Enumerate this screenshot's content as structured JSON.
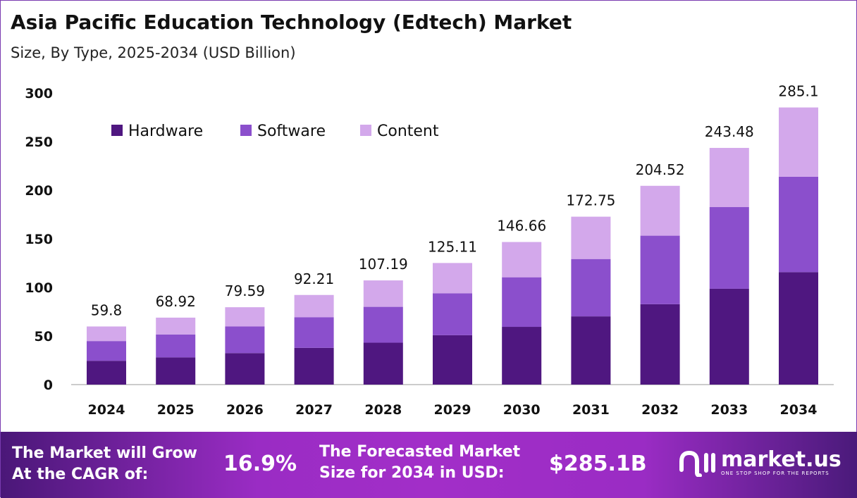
{
  "title": "Asia Pacific Education Technology (Edtech) Market",
  "subtitle": "Size, By Type, 2025-2034 (USD Billion)",
  "chart_data": {
    "type": "bar",
    "stacked": true,
    "categories": [
      "2024",
      "2025",
      "2026",
      "2027",
      "2028",
      "2029",
      "2030",
      "2031",
      "2032",
      "2033",
      "2034"
    ],
    "series": [
      {
        "name": "Hardware",
        "color": "#4f1780",
        "values": [
          24.5,
          28.0,
          32.4,
          37.8,
          43.1,
          50.8,
          59.4,
          70.2,
          82.7,
          98.6,
          115.7
        ]
      },
      {
        "name": "Software",
        "color": "#8b4fcc",
        "values": [
          20.3,
          23.6,
          27.4,
          31.4,
          36.9,
          43.1,
          51.0,
          59.0,
          70.5,
          84.0,
          98.1
        ]
      },
      {
        "name": "Content",
        "color": "#d3a8eb",
        "values": [
          15.0,
          17.3,
          19.8,
          23.0,
          27.2,
          31.2,
          36.3,
          43.55,
          51.3,
          60.9,
          71.3
        ]
      }
    ],
    "totals": [
      "59.8",
      "68.92",
      "79.59",
      "92.21",
      "107.19",
      "125.11",
      "146.66",
      "172.75",
      "204.52",
      "243.48",
      "285.1"
    ],
    "yticks": [
      "0",
      "50",
      "100",
      "150",
      "200",
      "250",
      "300"
    ],
    "ylim": [
      0,
      300
    ],
    "grid": false,
    "legend": "top-left"
  },
  "footer": {
    "cagr_label_1": "The Market will Grow",
    "cagr_label_2": "At the CAGR of:",
    "cagr_value": "16.9%",
    "forecast_label_1": "The Forecasted Market",
    "forecast_label_2": "Size for 2034 in USD:",
    "forecast_value": "$285.1B",
    "logo_name": "market.us",
    "logo_tagline": "ONE STOP SHOP FOR THE REPORTS"
  }
}
